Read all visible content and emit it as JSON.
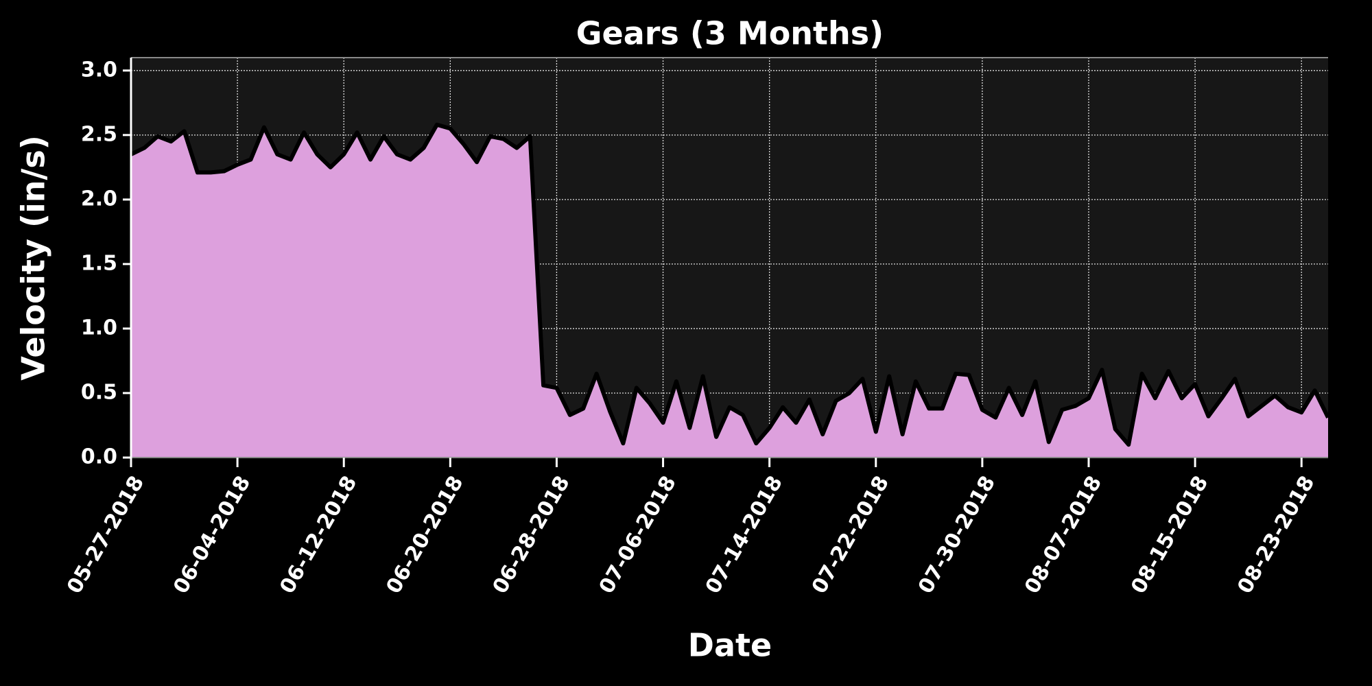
{
  "chart_data": {
    "type": "area",
    "title": "Gears (3 Months)",
    "x_label": "Date",
    "y_label": "Velocity (in/s)",
    "x": [
      "05-27-2018",
      "05-28-2018",
      "05-29-2018",
      "05-30-2018",
      "05-31-2018",
      "06-01-2018",
      "06-02-2018",
      "06-03-2018",
      "06-04-2018",
      "06-05-2018",
      "06-06-2018",
      "06-07-2018",
      "06-08-2018",
      "06-09-2018",
      "06-10-2018",
      "06-11-2018",
      "06-12-2018",
      "06-13-2018",
      "06-14-2018",
      "06-15-2018",
      "06-16-2018",
      "06-17-2018",
      "06-18-2018",
      "06-19-2018",
      "06-20-2018",
      "06-21-2018",
      "06-22-2018",
      "06-23-2018",
      "06-24-2018",
      "06-25-2018",
      "06-26-2018",
      "06-27-2018",
      "06-28-2018",
      "06-29-2018",
      "06-30-2018",
      "07-01-2018",
      "07-02-2018",
      "07-03-2018",
      "07-04-2018",
      "07-05-2018",
      "07-06-2018",
      "07-07-2018",
      "07-08-2018",
      "07-09-2018",
      "07-10-2018",
      "07-11-2018",
      "07-12-2018",
      "07-13-2018",
      "07-14-2018",
      "07-15-2018",
      "07-16-2018",
      "07-17-2018",
      "07-18-2018",
      "07-19-2018",
      "07-20-2018",
      "07-21-2018",
      "07-22-2018",
      "07-23-2018",
      "07-24-2018",
      "07-25-2018",
      "07-26-2018",
      "07-27-2018",
      "07-28-2018",
      "07-29-2018",
      "07-30-2018",
      "07-31-2018",
      "08-01-2018",
      "08-02-2018",
      "08-03-2018",
      "08-04-2018",
      "08-05-2018",
      "08-06-2018",
      "08-07-2018",
      "08-08-2018",
      "08-09-2018",
      "08-10-2018",
      "08-11-2018",
      "08-12-2018",
      "08-13-2018",
      "08-14-2018",
      "08-15-2018",
      "08-16-2018",
      "08-17-2018",
      "08-18-2018",
      "08-19-2018",
      "08-20-2018",
      "08-21-2018",
      "08-22-2018",
      "08-23-2018",
      "08-24-2018",
      "08-25-2018"
    ],
    "series": [
      {
        "name": "Velocity",
        "color": "#dda0dd",
        "line_color": "#000000",
        "values": [
          2.35,
          2.4,
          2.49,
          2.45,
          2.53,
          2.21,
          2.21,
          2.22,
          2.27,
          2.31,
          2.56,
          2.35,
          2.31,
          2.52,
          2.35,
          2.25,
          2.35,
          2.52,
          2.31,
          2.49,
          2.35,
          2.31,
          2.4,
          2.58,
          2.55,
          2.43,
          2.29,
          2.49,
          2.47,
          2.4,
          2.49,
          0.56,
          0.54,
          0.33,
          0.38,
          0.65,
          0.36,
          0.11,
          0.54,
          0.42,
          0.27,
          0.59,
          0.23,
          0.63,
          0.16,
          0.39,
          0.33,
          0.11,
          0.23,
          0.39,
          0.27,
          0.45,
          0.18,
          0.44,
          0.5,
          0.61,
          0.2,
          0.63,
          0.18,
          0.59,
          0.38,
          0.38,
          0.65,
          0.64,
          0.37,
          0.31,
          0.54,
          0.33,
          0.59,
          0.12,
          0.37,
          0.4,
          0.46,
          0.68,
          0.22,
          0.1,
          0.65,
          0.46,
          0.67,
          0.46,
          0.57,
          0.32,
          0.46,
          0.61,
          0.32,
          0.4,
          0.48,
          0.39,
          0.35,
          0.52,
          0.31
        ]
      }
    ],
    "xlim": [
      "05-27-2018",
      "08-25-2018"
    ],
    "xticks": [
      "05-27-2018",
      "06-04-2018",
      "06-12-2018",
      "06-20-2018",
      "06-28-2018",
      "07-06-2018",
      "07-14-2018",
      "07-22-2018",
      "07-30-2018",
      "08-07-2018",
      "08-15-2018",
      "08-23-2018"
    ],
    "ylim": [
      0,
      3.1
    ],
    "yticks": [
      {
        "value": 0,
        "label": "0.0"
      },
      {
        "value": 0.5,
        "label": "0.5"
      },
      {
        "value": 1,
        "label": "1.0"
      },
      {
        "value": 1.5,
        "label": "1.5"
      },
      {
        "value": 2,
        "label": "2.0"
      },
      {
        "value": 2.5,
        "label": "2.5"
      },
      {
        "value": 3,
        "label": "3.0"
      }
    ],
    "grid": true
  }
}
